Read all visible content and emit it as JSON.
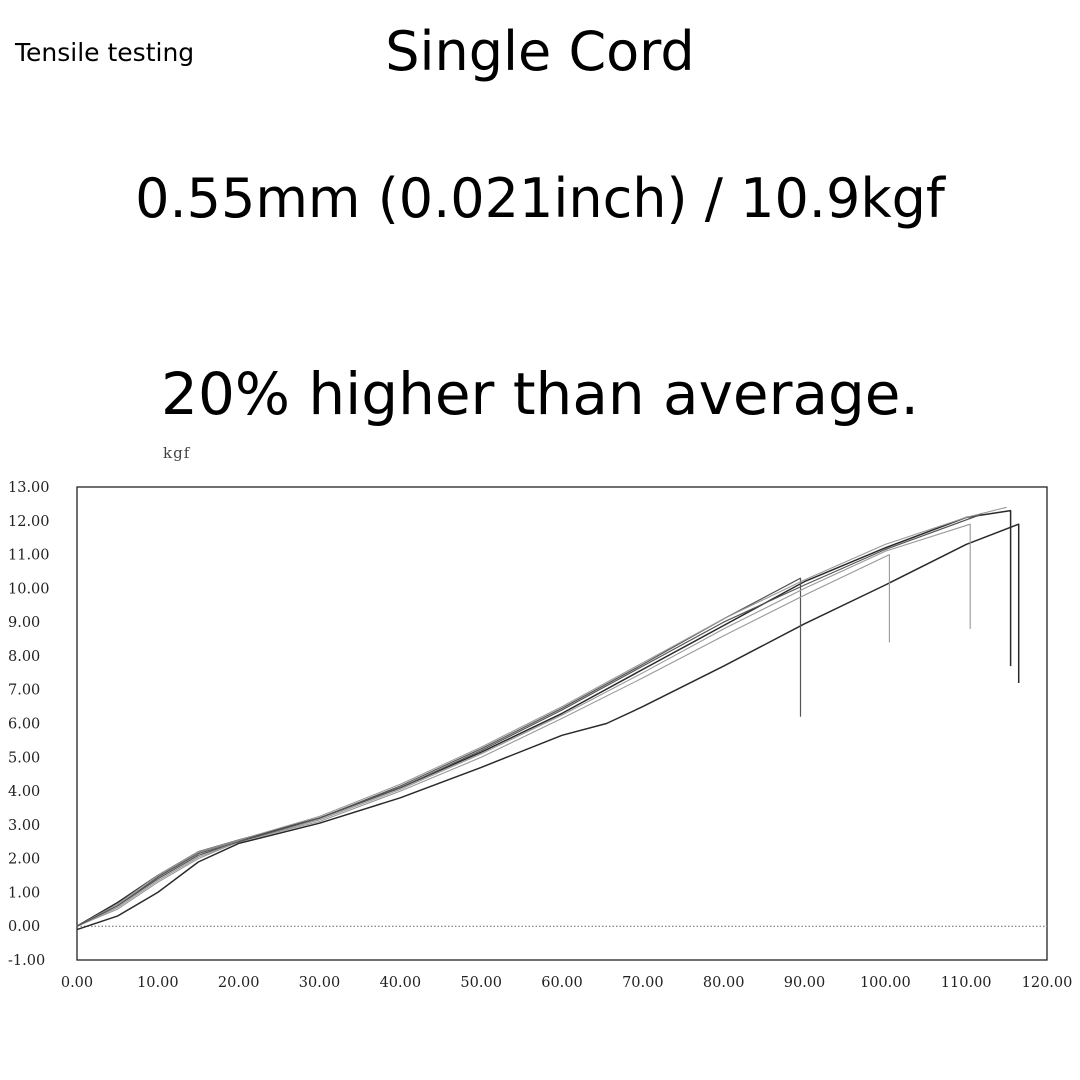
{
  "header": {
    "section_label": "Tensile testing",
    "title": "Single Cord",
    "spec": "0.55mm (0.021inch) / 10.9kgf",
    "claim": "20% higher than average."
  },
  "chart_data": {
    "type": "line",
    "ylabel": "kgf",
    "xlabel": "",
    "xlim": [
      0,
      120
    ],
    "ylim": [
      -1,
      13
    ],
    "xticks": [
      "0.00",
      "10.00",
      "20.00",
      "30.00",
      "40.00",
      "50.00",
      "60.00",
      "70.00",
      "80.00",
      "90.00",
      "100.00",
      "110.00",
      "120.00"
    ],
    "yticks": [
      "13.00",
      "12.00",
      "11.00",
      "10.00",
      "9.00",
      "8.00",
      "7.00",
      "6.00",
      "5.00",
      "4.00",
      "3.00",
      "2.00",
      "1.00",
      "0.00",
      "-1.00"
    ],
    "grid": false,
    "baseline_y": 0,
    "colors": {
      "dark": "#2a2a2a",
      "mid": "#555555",
      "light": "#999999",
      "frame": "#222222"
    },
    "series": [
      {
        "x": [
          0,
          5,
          10,
          15,
          20,
          30,
          40,
          50,
          60,
          70,
          80,
          90,
          100,
          110,
          115.5,
          115.5
        ],
        "y": [
          0,
          0.7,
          1.5,
          2.2,
          2.55,
          3.2,
          4.1,
          5.15,
          6.3,
          7.6,
          8.9,
          10.2,
          11.2,
          12.1,
          12.3,
          7.7
        ],
        "tone": "dark"
      },
      {
        "x": [
          0,
          5,
          10,
          15,
          20,
          30,
          40,
          50,
          60,
          65.5,
          70,
          80,
          90,
          100,
          110,
          116.5,
          116.5
        ],
        "y": [
          -0.1,
          0.3,
          1.0,
          1.9,
          2.45,
          3.05,
          3.8,
          4.7,
          5.65,
          6.0,
          6.5,
          7.7,
          8.95,
          10.1,
          11.3,
          11.9,
          7.2
        ],
        "tone": "dark"
      },
      {
        "x": [
          0,
          5,
          10,
          15,
          20,
          30,
          40,
          50,
          60,
          70,
          80,
          89.5,
          89.5
        ],
        "y": [
          0,
          0.6,
          1.4,
          2.1,
          2.5,
          3.2,
          4.15,
          5.25,
          6.45,
          7.75,
          9.1,
          10.3,
          6.2
        ],
        "tone": "mid"
      },
      {
        "x": [
          0,
          5,
          10,
          15,
          20,
          30,
          40,
          50,
          60,
          70,
          80,
          90,
          100.5,
          100.5
        ],
        "y": [
          0,
          0.5,
          1.3,
          2.0,
          2.5,
          3.1,
          4.0,
          5.0,
          6.15,
          7.35,
          8.6,
          9.8,
          11.0,
          8.4
        ],
        "tone": "light"
      },
      {
        "x": [
          0,
          5,
          10,
          15,
          20,
          30,
          40,
          50,
          60,
          70,
          80,
          90,
          100,
          110.5,
          110.5
        ],
        "y": [
          0,
          0.55,
          1.35,
          2.05,
          2.5,
          3.15,
          4.05,
          5.1,
          6.25,
          7.5,
          8.8,
          10.0,
          11.1,
          11.9,
          8.8
        ],
        "tone": "light"
      },
      {
        "x": [
          0,
          5,
          10,
          15,
          20,
          30,
          40,
          50,
          60,
          70,
          80,
          90,
          100,
          110,
          115
        ],
        "y": [
          0,
          0.65,
          1.5,
          2.2,
          2.55,
          3.25,
          4.2,
          5.3,
          6.5,
          7.8,
          9.1,
          10.25,
          11.3,
          12.1,
          12.4
        ],
        "tone": "light"
      },
      {
        "x": [
          0,
          5,
          10,
          15,
          20,
          30,
          40,
          50,
          60,
          70,
          80,
          90,
          100,
          112
        ],
        "y": [
          0,
          0.6,
          1.45,
          2.15,
          2.5,
          3.2,
          4.1,
          5.2,
          6.4,
          7.7,
          9.0,
          10.1,
          11.15,
          12.2
        ],
        "tone": "mid"
      }
    ]
  }
}
